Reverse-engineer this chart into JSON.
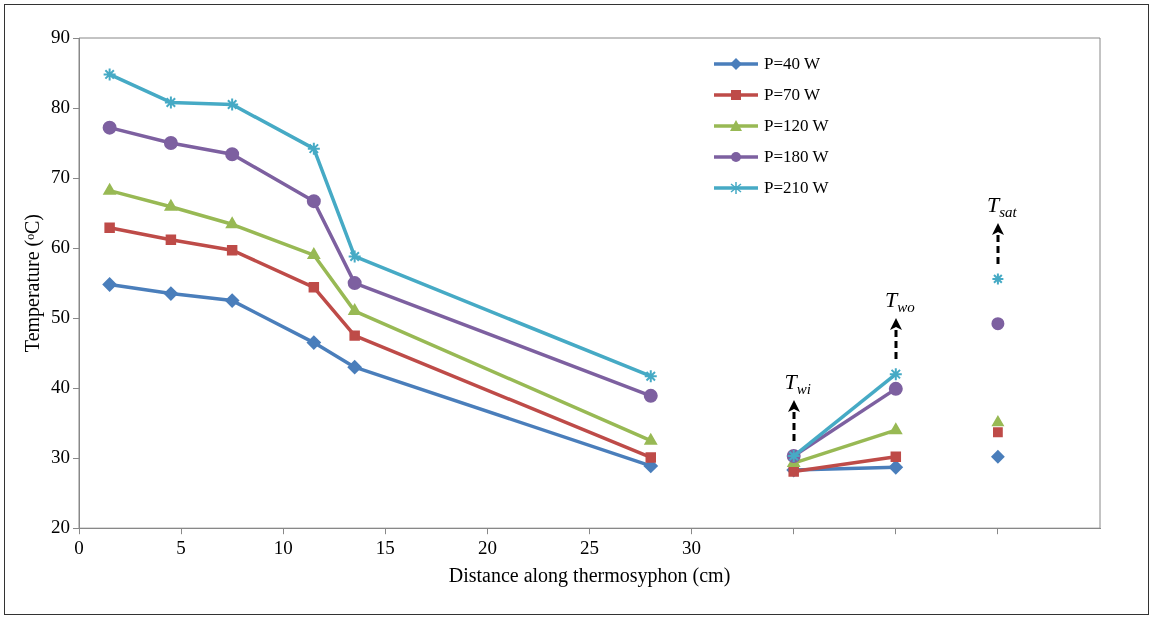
{
  "chart_data": {
    "type": "line",
    "xlabel": "Distance along thermosyphon (cm)",
    "ylabel": "Temperature (ᵒC)",
    "xlim": [
      0,
      50
    ],
    "xticks": [
      0,
      5,
      10,
      15,
      20,
      25,
      30,
      {
        "value": 35,
        "label": null
      },
      {
        "value": 40,
        "label": null
      },
      {
        "value": 45,
        "label": null
      }
    ],
    "ylim": [
      20,
      90
    ],
    "yticks": [
      20,
      30,
      40,
      50,
      60,
      70,
      80,
      90
    ],
    "grid": false,
    "legend": "top right",
    "series": [
      {
        "name": "P=40 W",
        "color": "#4a7ebb",
        "marker": "diamond",
        "x": [
          1.5,
          4.5,
          7.5,
          11.5,
          13.5,
          28
        ],
        "values": [
          54.8,
          53.5,
          52.5,
          46.5,
          43,
          28.9
        ]
      },
      {
        "name": "P=70 W",
        "color": "#be4b48",
        "marker": "square",
        "x": [
          1.5,
          4.5,
          7.5,
          11.5,
          13.5,
          28
        ],
        "values": [
          62.9,
          61.2,
          59.7,
          54.4,
          47.5,
          30.1
        ]
      },
      {
        "name": "P=120 W",
        "color": "#98b954",
        "marker": "triangle",
        "x": [
          1.5,
          4.5,
          7.5,
          11.5,
          13.5,
          28
        ],
        "values": [
          68.2,
          65.9,
          63.4,
          59,
          51,
          32.5
        ]
      },
      {
        "name": "P=180 W",
        "color": "#7d60a0",
        "marker": "circle",
        "x": [
          1.5,
          4.5,
          7.5,
          11.5,
          13.5,
          28
        ],
        "values": [
          77.2,
          75,
          73.4,
          66.7,
          55,
          38.9
        ]
      },
      {
        "name": "P=210 W",
        "color": "#46aac5",
        "marker": "cross",
        "x": [
          1.5,
          4.5,
          7.5,
          11.5,
          13.5,
          28
        ],
        "values": [
          84.8,
          80.8,
          80.5,
          74.2,
          58.8,
          41.7
        ]
      },
      {
        "color": "#4a7ebb",
        "marker": "diamond",
        "x": [
          35,
          40
        ],
        "values": [
          28.3,
          28.7
        ]
      },
      {
        "color": "#be4b48",
        "marker": "square",
        "x": [
          35,
          40
        ],
        "values": [
          28.1,
          30.2
        ]
      },
      {
        "color": "#98b954",
        "marker": "triangle",
        "x": [
          35,
          40
        ],
        "values": [
          29.3,
          34
        ]
      },
      {
        "color": "#7d60a0",
        "marker": "circle",
        "x": [
          35,
          40
        ],
        "values": [
          30.3,
          39.9
        ]
      },
      {
        "color": "#46aac5",
        "marker": "cross",
        "x": [
          35,
          40
        ],
        "values": [
          30.3,
          42
        ]
      },
      {
        "type": "scatter",
        "color": "#4a7ebb",
        "marker": "diamond",
        "x": [
          45
        ],
        "values": [
          30.2
        ]
      },
      {
        "type": "scatter",
        "color": "#be4b48",
        "marker": "square",
        "x": [
          45
        ],
        "values": [
          33.7
        ]
      },
      {
        "type": "scatter",
        "color": "#98b954",
        "marker": "triangle",
        "x": [
          45
        ],
        "values": [
          35.1
        ]
      },
      {
        "type": "scatter",
        "color": "#7d60a0",
        "marker": "circle",
        "x": [
          45
        ],
        "values": [
          49.2
        ]
      },
      {
        "type": "scatter",
        "color": "#46aac5",
        "marker": "cross",
        "x": [
          45
        ],
        "values": [
          55.6
        ]
      }
    ],
    "annotations": [
      {
        "text": "T$_{wi}$",
        "x": 35,
        "y": 30.3
      },
      {
        "text": "T$_{wo}$",
        "x": 40,
        "y": 42
      },
      {
        "text": "T$_{sat}$",
        "x": 45,
        "y": 55.6
      }
    ]
  }
}
